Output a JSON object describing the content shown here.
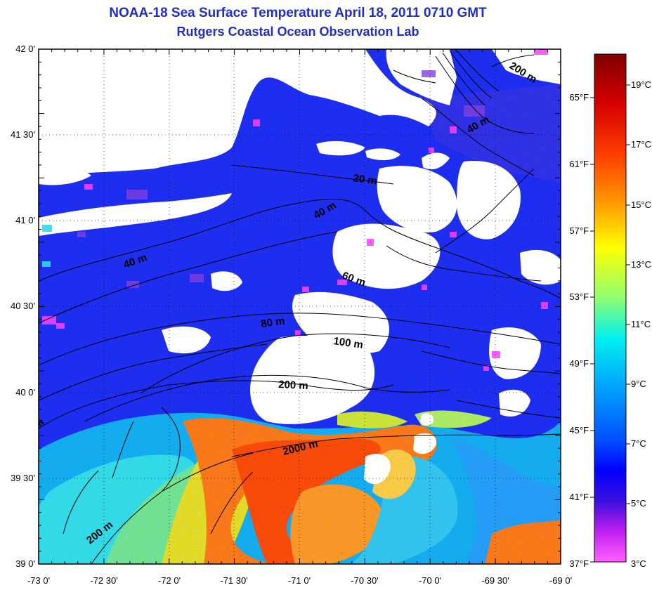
{
  "title": "NOAA-18 Sea Surface Temperature April 18, 2011 0710 GMT",
  "subtitle": "Rutgers Coastal Ocean Observation Lab",
  "lat_ticks": [
    "42 0'",
    "41 30'",
    "41 0'",
    "40 30'",
    "40 0'",
    "39 30'",
    "39 0'"
  ],
  "lon_ticks": [
    "-73 0'",
    "-72 30'",
    "-72 0'",
    "-71 30'",
    "-71 0'",
    "-70 30'",
    "-70 0'",
    "-69 30'",
    "-69 0'"
  ],
  "isobath_labels": {
    "l200a": "200 m",
    "l40a": "40 m",
    "l20": "20 m",
    "l40b": "40 m",
    "l40c": "40 m",
    "l60": "60 m",
    "l80": "80 m",
    "l100": "100 m",
    "l200b": "200 m",
    "l2000": "2000 m",
    "l200c": "200 m",
    "lm": "m"
  },
  "colorbar": {
    "celsius": [
      "19°C",
      "17°C",
      "15°C",
      "13°C",
      "11°C",
      "9°C",
      "7°C",
      "5°C",
      "3°C"
    ],
    "fahrenheit": [
      "65°F",
      "61°F",
      "57°F",
      "53°F",
      "49°F",
      "45°F",
      "41°F",
      "37°F"
    ],
    "colors": [
      "#800000",
      "#e00000",
      "#ff5a00",
      "#ffb400",
      "#ffff00",
      "#80ff80",
      "#00e0e0",
      "#00a0ff",
      "#0040ff",
      "#0000ff",
      "#4000e0",
      "#ff00ff",
      "#ff80ff"
    ]
  }
}
